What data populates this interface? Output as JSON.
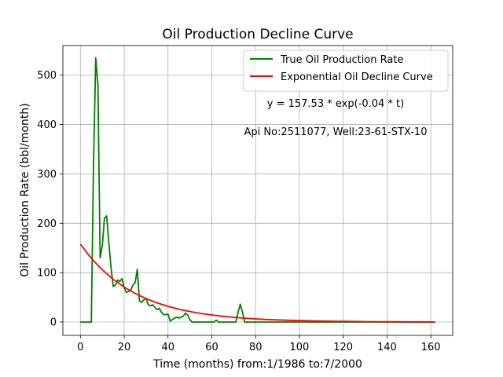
{
  "chart_data": {
    "type": "line",
    "title": "Oil Production Decline Curve",
    "xlabel": "Time (months) from:1/1986 to:7/2000",
    "ylabel": "Oil Production Rate (bbl/month)",
    "xlim": [
      -8,
      170
    ],
    "ylim": [
      -27,
      560
    ],
    "xticks": [
      0,
      20,
      40,
      60,
      80,
      100,
      120,
      140,
      160
    ],
    "yticks": [
      0,
      100,
      200,
      300,
      400,
      500
    ],
    "grid": true,
    "legend_position": "top-right",
    "annotations": [
      "y = 157.53 * exp(-0.04 * t)",
      "Api No:2511077, Well:23-61-STX-10"
    ],
    "series": [
      {
        "name": "True Oil Production Rate",
        "color": "#008000",
        "x": [
          0,
          1,
          2,
          3,
          4,
          5,
          6,
          7,
          8,
          9,
          10,
          11,
          12,
          13,
          14,
          15,
          16,
          17,
          18,
          19,
          20,
          21,
          22,
          23,
          24,
          25,
          26,
          27,
          28,
          29,
          30,
          31,
          32,
          33,
          34,
          35,
          36,
          37,
          38,
          39,
          40,
          41,
          42,
          43,
          44,
          45,
          46,
          47,
          48,
          49,
          50,
          51,
          52,
          55,
          58,
          61,
          62,
          63,
          66,
          69,
          71,
          72,
          73,
          74,
          75,
          80,
          90,
          100,
          110,
          120,
          130,
          140,
          150,
          162
        ],
        "y": [
          0,
          0,
          0,
          0,
          0,
          0,
          320,
          535,
          480,
          130,
          155,
          210,
          215,
          160,
          110,
          72,
          75,
          85,
          82,
          88,
          70,
          60,
          62,
          65,
          75,
          80,
          107,
          42,
          40,
          45,
          48,
          35,
          33,
          35,
          30,
          25,
          28,
          20,
          15,
          15,
          16,
          2,
          5,
          8,
          10,
          8,
          10,
          12,
          18,
          14,
          5,
          0,
          0,
          0,
          0,
          0,
          4,
          0,
          0,
          0,
          0,
          20,
          36,
          20,
          0,
          0,
          0,
          0,
          0,
          0,
          0,
          0,
          0,
          0
        ]
      },
      {
        "name": "Exponential Oil Decline Curve",
        "color": "#ff0000",
        "x": [
          0,
          5,
          10,
          15,
          20,
          25,
          30,
          35,
          40,
          45,
          50,
          55,
          60,
          65,
          70,
          75,
          80,
          85,
          90,
          95,
          100,
          105,
          110,
          115,
          120,
          125,
          130,
          135,
          140,
          145,
          150,
          155,
          162
        ],
        "y": [
          157.5,
          129.0,
          105.6,
          86.4,
          70.8,
          57.9,
          47.4,
          38.8,
          31.8,
          26.0,
          21.3,
          17.4,
          14.3,
          11.7,
          9.6,
          7.8,
          6.4,
          5.2,
          4.3,
          3.5,
          2.9,
          2.4,
          1.9,
          1.6,
          1.3,
          1.1,
          0.9,
          0.7,
          0.6,
          0.5,
          0.4,
          0.3,
          0.2
        ]
      }
    ]
  }
}
